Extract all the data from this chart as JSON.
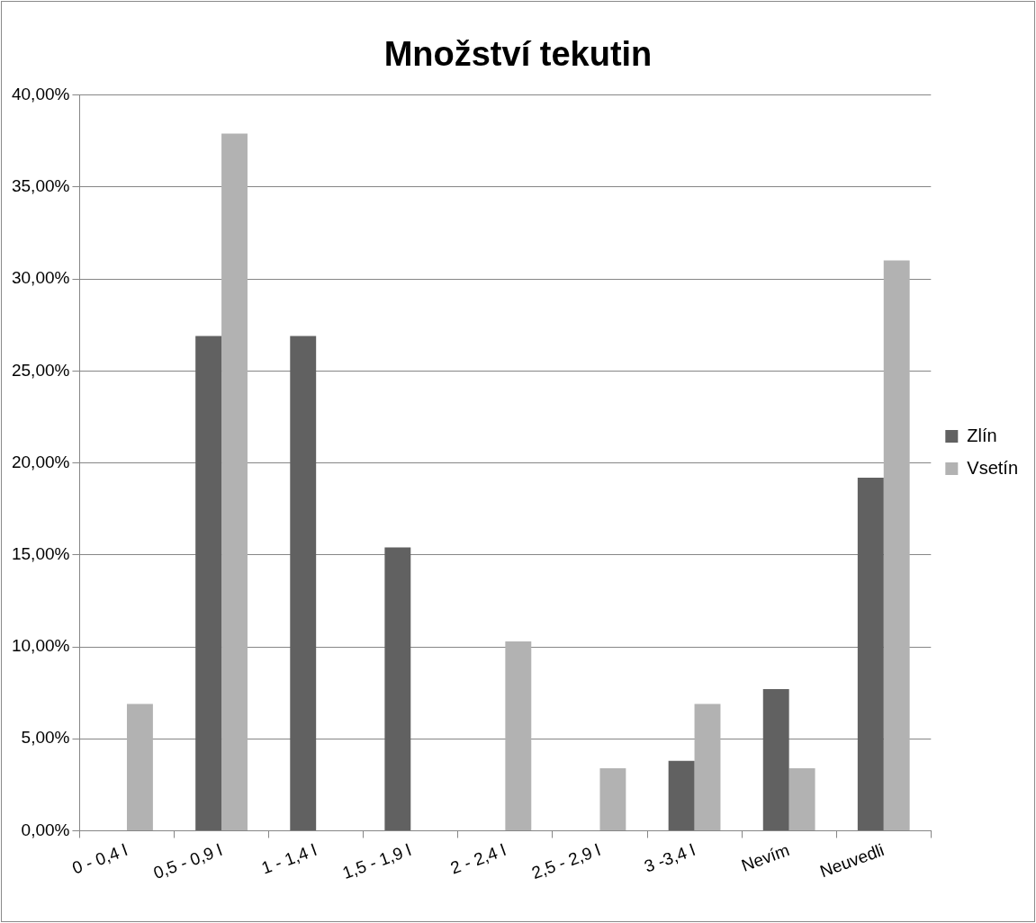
{
  "chart_data": {
    "type": "bar",
    "title": "Množství tekutin",
    "categories": [
      "0 - 0,4 l",
      "0,5 - 0,9 l",
      "1 - 1,4 l",
      "1,5 - 1,9 l",
      "2 - 2,4 l",
      "2,5 - 2,9 l",
      "3 -3,4 l",
      "Nevím",
      "Neuvedli"
    ],
    "series": [
      {
        "name": "Zlín",
        "color": "#616161",
        "values": [
          0,
          26.9,
          26.9,
          15.4,
          0,
          0,
          3.8,
          7.7,
          19.2
        ]
      },
      {
        "name": "Vsetín",
        "color": "#b2b2b2",
        "values": [
          6.9,
          37.9,
          0,
          0,
          10.3,
          3.4,
          6.9,
          3.4,
          31.0
        ]
      }
    ],
    "ylim": [
      0,
      40
    ],
    "yticks": [
      {
        "value": 0,
        "label": "0,00%"
      },
      {
        "value": 5,
        "label": "5,00%"
      },
      {
        "value": 10,
        "label": "10,00%"
      },
      {
        "value": 15,
        "label": "15,00%"
      },
      {
        "value": 20,
        "label": "20,00%"
      },
      {
        "value": 25,
        "label": "25,00%"
      },
      {
        "value": 30,
        "label": "30,00%"
      },
      {
        "value": 35,
        "label": "35,00%"
      },
      {
        "value": 40,
        "label": "40,00%"
      }
    ],
    "grid": "y",
    "legend": "right"
  }
}
